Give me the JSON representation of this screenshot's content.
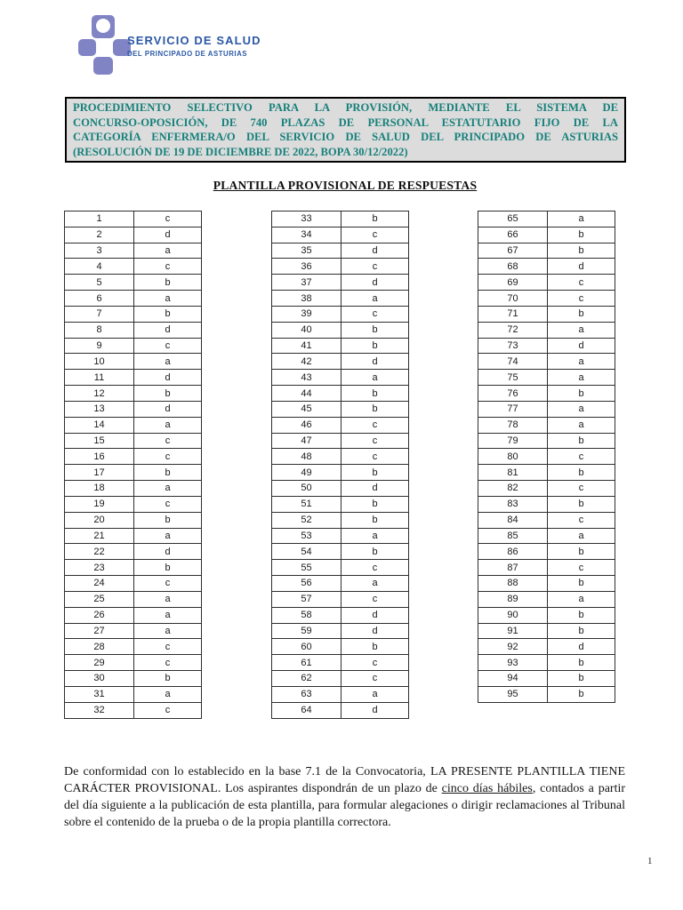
{
  "logo": {
    "title": "SERVICIO DE SALUD",
    "subtitle": "DEL PRINCIPADO DE ASTURIAS",
    "cross_color": "#8084c4",
    "text_color": "#2b58a5"
  },
  "header_box": {
    "text_color": "#17807b",
    "background_color": "#dcdcdc",
    "lines": [
      "PROCEDIMIENTO SELECTIVO PARA LA PROVISIÓN, MEDIANTE EL SISTEMA DE",
      "CONCURSO-OPOSICIÓN, DE 740 PLAZAS DE PERSONAL ESTATUTARIO FIJO DE LA",
      "CATEGORÍA ENFERMERA/O DEL SERVICIO DE SALUD DEL PRINCIPADO DE ASTURIAS",
      "(RESOLUCIÓN DE 19 DE DICIEMBRE DE 2022, BOPA 30/12/2022)"
    ]
  },
  "subtitle": "PLANTILLA PROVISIONAL DE RESPUESTAS",
  "answer_tables": [
    {
      "rows": [
        [
          "1",
          "c"
        ],
        [
          "2",
          "d"
        ],
        [
          "3",
          "a"
        ],
        [
          "4",
          "c"
        ],
        [
          "5",
          "b"
        ],
        [
          "6",
          "a"
        ],
        [
          "7",
          "b"
        ],
        [
          "8",
          "d"
        ],
        [
          "9",
          "c"
        ],
        [
          "10",
          "a"
        ],
        [
          "11",
          "d"
        ],
        [
          "12",
          "b"
        ],
        [
          "13",
          "d"
        ],
        [
          "14",
          "a"
        ],
        [
          "15",
          "c"
        ],
        [
          "16",
          "c"
        ],
        [
          "17",
          "b"
        ],
        [
          "18",
          "a"
        ],
        [
          "19",
          "c"
        ],
        [
          "20",
          "b"
        ],
        [
          "21",
          "a"
        ],
        [
          "22",
          "d"
        ],
        [
          "23",
          "b"
        ],
        [
          "24",
          "c"
        ],
        [
          "25",
          "a"
        ],
        [
          "26",
          "a"
        ],
        [
          "27",
          "a"
        ],
        [
          "28",
          "c"
        ],
        [
          "29",
          "c"
        ],
        [
          "30",
          "b"
        ],
        [
          "31",
          "a"
        ],
        [
          "32",
          "c"
        ]
      ]
    },
    {
      "rows": [
        [
          "33",
          "b"
        ],
        [
          "34",
          "c"
        ],
        [
          "35",
          "d"
        ],
        [
          "36",
          "c"
        ],
        [
          "37",
          "d"
        ],
        [
          "38",
          "a"
        ],
        [
          "39",
          "c"
        ],
        [
          "40",
          "b"
        ],
        [
          "41",
          "b"
        ],
        [
          "42",
          "d"
        ],
        [
          "43",
          "a"
        ],
        [
          "44",
          "b"
        ],
        [
          "45",
          "b"
        ],
        [
          "46",
          "c"
        ],
        [
          "47",
          "c"
        ],
        [
          "48",
          "c"
        ],
        [
          "49",
          "b"
        ],
        [
          "50",
          "d"
        ],
        [
          "51",
          "b"
        ],
        [
          "52",
          "b"
        ],
        [
          "53",
          "a"
        ],
        [
          "54",
          "b"
        ],
        [
          "55",
          "c"
        ],
        [
          "56",
          "a"
        ],
        [
          "57",
          "c"
        ],
        [
          "58",
          "d"
        ],
        [
          "59",
          "d"
        ],
        [
          "60",
          "b"
        ],
        [
          "61",
          "c"
        ],
        [
          "62",
          "c"
        ],
        [
          "63",
          "a"
        ],
        [
          "64",
          "d"
        ]
      ]
    },
    {
      "rows": [
        [
          "65",
          "a"
        ],
        [
          "66",
          "b"
        ],
        [
          "67",
          "b"
        ],
        [
          "68",
          "d"
        ],
        [
          "69",
          "c"
        ],
        [
          "70",
          "c"
        ],
        [
          "71",
          "b"
        ],
        [
          "72",
          "a"
        ],
        [
          "73",
          "d"
        ],
        [
          "74",
          "a"
        ],
        [
          "75",
          "a"
        ],
        [
          "76",
          "b"
        ],
        [
          "77",
          "a"
        ],
        [
          "78",
          "a"
        ],
        [
          "79",
          "b"
        ],
        [
          "80",
          "c"
        ],
        [
          "81",
          "b"
        ],
        [
          "82",
          "c"
        ],
        [
          "83",
          "b"
        ],
        [
          "84",
          "c"
        ],
        [
          "85",
          "a"
        ],
        [
          "86",
          "b"
        ],
        [
          "87",
          "c"
        ],
        [
          "88",
          "b"
        ],
        [
          "89",
          "a"
        ],
        [
          "90",
          "b"
        ],
        [
          "91",
          "b"
        ],
        [
          "92",
          "d"
        ],
        [
          "93",
          "b"
        ],
        [
          "94",
          "b"
        ],
        [
          "95",
          "b"
        ]
      ]
    }
  ],
  "footer": {
    "text_before": "De conformidad con lo establecido en la base 7.1 de la Convocatoria, LA PRESENTE PLANTILLA TIENE CARÁCTER PROVISIONAL. Los aspirantes dispondrán de un plazo de ",
    "underlined": "cinco días hábiles",
    "text_after": ", contados a partir del día siguiente a la publicación de esta plantilla, para formular alegaciones o dirigir reclamaciones al Tribunal sobre el contenido de la prueba o de la propia plantilla correctora."
  },
  "page": {
    "number": "1"
  }
}
